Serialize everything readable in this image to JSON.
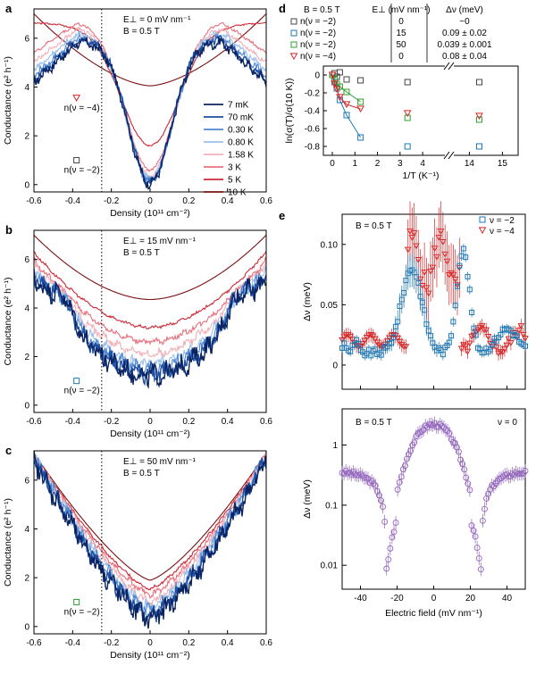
{
  "chart_data": [
    {
      "id": "a",
      "type": "line",
      "panel_label": "a",
      "xlabel": "Density (10¹¹ cm⁻²)",
      "ylabel": "Conductance (e² h⁻¹)",
      "xlim": [
        -0.6,
        0.6
      ],
      "ylim": [
        -0.3,
        7.2
      ],
      "xticks": [
        "-0.6",
        "-0.4",
        "-0.2",
        "0",
        "0.2",
        "0.4",
        "0.6"
      ],
      "yticks": [
        "0",
        "2",
        "4",
        "6"
      ],
      "annotations": [
        "E⊥ = 0 mV nm⁻¹",
        "B = 0.5 T"
      ],
      "dashed_x": -0.25,
      "markers": [
        {
          "label": "n(ν = −4)",
          "x": -0.38,
          "y": 3.55,
          "shape": "triangle",
          "color": "#d62728"
        },
        {
          "label": "n(ν = −2)",
          "x": -0.38,
          "y": 1.0,
          "shape": "square",
          "color": "#444444"
        }
      ],
      "legend": [
        {
          "name": "7 mK",
          "color": "#0b2461"
        },
        {
          "name": "70 mK",
          "color": "#1e4fa3"
        },
        {
          "name": "0.30 K",
          "color": "#4f86d0"
        },
        {
          "name": "0.80 K",
          "color": "#9cc0ea"
        },
        {
          "name": "1.58 K",
          "color": "#f2b0b8"
        },
        {
          "name": "3 K",
          "color": "#e8707d"
        },
        {
          "name": "5 K",
          "color": "#cc2a36"
        },
        {
          "name": "10 K",
          "color": "#7a1010"
        }
      ],
      "series": [
        {
          "name": "7 mK",
          "min": 0.05,
          "peak": 5.85,
          "edge": 4.2,
          "w": 0.11
        },
        {
          "name": "70 mK",
          "min": 0.1,
          "peak": 5.95,
          "edge": 4.3,
          "w": 0.11
        },
        {
          "name": "0.30 K",
          "min": 0.15,
          "peak": 6.05,
          "edge": 4.45,
          "w": 0.115
        },
        {
          "name": "0.80 K",
          "min": 0.25,
          "peak": 6.25,
          "edge": 4.7,
          "w": 0.12
        },
        {
          "name": "1.58 K",
          "min": 0.35,
          "peak": 6.45,
          "edge": 5.0,
          "w": 0.125
        },
        {
          "name": "3 K",
          "min": 0.6,
          "peak": 6.7,
          "edge": 5.4,
          "w": 0.13
        },
        {
          "name": "5 K",
          "min": 1.6,
          "peak": 6.55,
          "edge": 5.9,
          "w": 0.15
        },
        {
          "name": "10 K",
          "min": 4.05,
          "peak": 6.4,
          "edge": 7.0,
          "w": 0.2
        }
      ]
    },
    {
      "id": "b",
      "type": "line",
      "panel_label": "b",
      "xlabel": "Density (10¹¹ cm⁻²)",
      "ylabel": "Conductance (e² h⁻¹)",
      "xlim": [
        -0.6,
        0.6
      ],
      "ylim": [
        -0.3,
        7.2
      ],
      "xticks": [
        "-0.6",
        "-0.4",
        "-0.2",
        "0",
        "0.2",
        "0.4",
        "0.6"
      ],
      "yticks": [
        "0",
        "2",
        "4",
        "6"
      ],
      "annotations": [
        "E⊥ = 15 mV nm⁻¹",
        "B = 0.5 T"
      ],
      "dashed_x": -0.25,
      "markers": [
        {
          "label": "n(ν = −2)",
          "x": -0.38,
          "y": 1.0,
          "shape": "square",
          "color": "#1f77b4"
        }
      ],
      "series": [
        {
          "name": "7 mK",
          "min": 1.2,
          "edge": 5.2
        },
        {
          "name": "70 mK",
          "min": 1.3,
          "edge": 5.3
        },
        {
          "name": "0.30 K",
          "min": 1.45,
          "edge": 5.45
        },
        {
          "name": "0.80 K",
          "min": 1.7,
          "edge": 5.6
        },
        {
          "name": "1.58 K",
          "min": 2.1,
          "edge": 5.8
        },
        {
          "name": "3 K",
          "min": 2.6,
          "edge": 5.95
        },
        {
          "name": "5 K",
          "min": 3.2,
          "edge": 6.3
        },
        {
          "name": "10 K",
          "min": 4.35,
          "edge": 7.0
        }
      ]
    },
    {
      "id": "c",
      "type": "line",
      "panel_label": "c",
      "xlabel": "Density (10¹¹ cm⁻²)",
      "ylabel": "Conductance (e² h⁻¹)",
      "xlim": [
        -0.6,
        0.6
      ],
      "ylim": [
        -0.3,
        7.2
      ],
      "xticks": [
        "-0.6",
        "-0.4",
        "-0.2",
        "0",
        "0.2",
        "0.4",
        "0.6"
      ],
      "yticks": [
        "0",
        "2",
        "4",
        "6"
      ],
      "annotations": [
        "E⊥ = 50 mV nm⁻¹",
        "B = 0.5 T"
      ],
      "dashed_x": -0.25,
      "markers": [
        {
          "label": "n(ν = −2)",
          "x": -0.38,
          "y": 1.0,
          "shape": "square",
          "color": "#2ca02c"
        }
      ],
      "series": [
        {
          "name": "7 mK",
          "min": 0.3,
          "edge": 6.8
        },
        {
          "name": "70 mK",
          "min": 0.45,
          "edge": 6.9
        },
        {
          "name": "0.30 K",
          "min": 0.6,
          "edge": 7.0
        },
        {
          "name": "0.80 K",
          "min": 0.8,
          "edge": 7.0
        },
        {
          "name": "1.58 K",
          "min": 1.0,
          "edge": 7.05
        },
        {
          "name": "3 K",
          "min": 1.3,
          "edge": 7.05
        },
        {
          "name": "5 K",
          "min": 1.55,
          "edge": 7.1
        },
        {
          "name": "10 K",
          "min": 1.9,
          "edge": 7.1
        }
      ]
    },
    {
      "id": "d",
      "type": "scatter",
      "panel_label": "d",
      "xlabel": "1/T (K⁻¹)",
      "ylabel": "ln(σ(T)/σ(10 K))",
      "xticks": [
        "0",
        "1",
        "2",
        "3",
        "4",
        "14",
        "15"
      ],
      "yticks": [
        "0",
        "-0.2",
        "-0.4",
        "-0.6",
        "-0.8"
      ],
      "ylim": [
        -0.9,
        0.1
      ],
      "table": {
        "headers": [
          "B = 0.5 T",
          "E⊥ (mV nm⁻¹)",
          "Δν (meV)"
        ],
        "rows": [
          {
            "label": "n(ν = −2)",
            "E": "0",
            "delta": "~0",
            "color": "#444444",
            "shape": "square"
          },
          {
            "label": "n(ν = −2)",
            "E": "15",
            "delta": "0.09 ± 0.02",
            "color": "#1f77b4",
            "shape": "square"
          },
          {
            "label": "n(ν = −2)",
            "E": "50",
            "delta": "0.039 ± 0.001",
            "color": "#2ca02c",
            "shape": "square"
          },
          {
            "label": "n(ν = −4)",
            "E": "0",
            "delta": "0.08 ± 0.04",
            "color": "#d62728",
            "shape": "triangle"
          }
        ]
      },
      "series": [
        {
          "name": "E 0, ν=−2",
          "color": "#444444",
          "shape": "square",
          "x": [
            0.007,
            0.1,
            0.2,
            0.333,
            0.633,
            1.25,
            3.33,
            14.3
          ],
          "y": [
            0.0,
            0.02,
            -0.02,
            0.03,
            -0.05,
            -0.06,
            -0.08,
            -0.08
          ]
        },
        {
          "name": "E 15, ν=−2",
          "color": "#1f77b4",
          "shape": "square",
          "x": [
            0.007,
            0.1,
            0.2,
            0.333,
            0.633,
            1.25,
            3.33,
            14.3
          ],
          "y": [
            0.0,
            -0.08,
            -0.15,
            -0.28,
            -0.45,
            -0.7,
            -0.8,
            -0.8
          ]
        },
        {
          "name": "E 50, ν=−2",
          "color": "#2ca02c",
          "shape": "square",
          "x": [
            0.007,
            0.1,
            0.2,
            0.333,
            0.633,
            1.25,
            3.33,
            14.3
          ],
          "y": [
            0.0,
            -0.05,
            -0.1,
            -0.13,
            -0.19,
            -0.3,
            -0.48,
            -0.5
          ]
        },
        {
          "name": "E 0, ν=−4",
          "color": "#d62728",
          "shape": "triangle",
          "x": [
            0.007,
            0.1,
            0.2,
            0.333,
            0.633,
            1.25,
            3.33,
            14.3
          ],
          "y": [
            0.0,
            -0.1,
            -0.16,
            -0.25,
            -0.33,
            -0.38,
            -0.43,
            -0.46
          ]
        }
      ]
    },
    {
      "id": "e_top",
      "type": "scatter",
      "panel_label": "e",
      "ylabel": "Δν (meV)",
      "xlim": [
        -50,
        50
      ],
      "ylim": [
        -0.02,
        0.125
      ],
      "yticks": [
        "0",
        "0.05",
        "0.10"
      ],
      "annotation": "B = 0.5 T",
      "legend": [
        {
          "name": "ν = −2",
          "color": "#1f77b4",
          "shape": "square"
        },
        {
          "name": "ν = −4",
          "color": "#d62728",
          "shape": "triangle"
        }
      ]
    },
    {
      "id": "e_bottom",
      "type": "scatter",
      "xlabel": "Electric field (mV nm⁻¹)",
      "ylabel": "Δν (meV)",
      "xlim": [
        -50,
        50
      ],
      "ylim_log": [
        0.004,
        4
      ],
      "xticks": [
        "-40",
        "-20",
        "0",
        "20",
        "40"
      ],
      "yticks": [
        "1",
        "0.1",
        "0.01"
      ],
      "annotation": "B = 0.5 T",
      "legend_label": "ν = 0",
      "color": "#9467bd"
    }
  ]
}
